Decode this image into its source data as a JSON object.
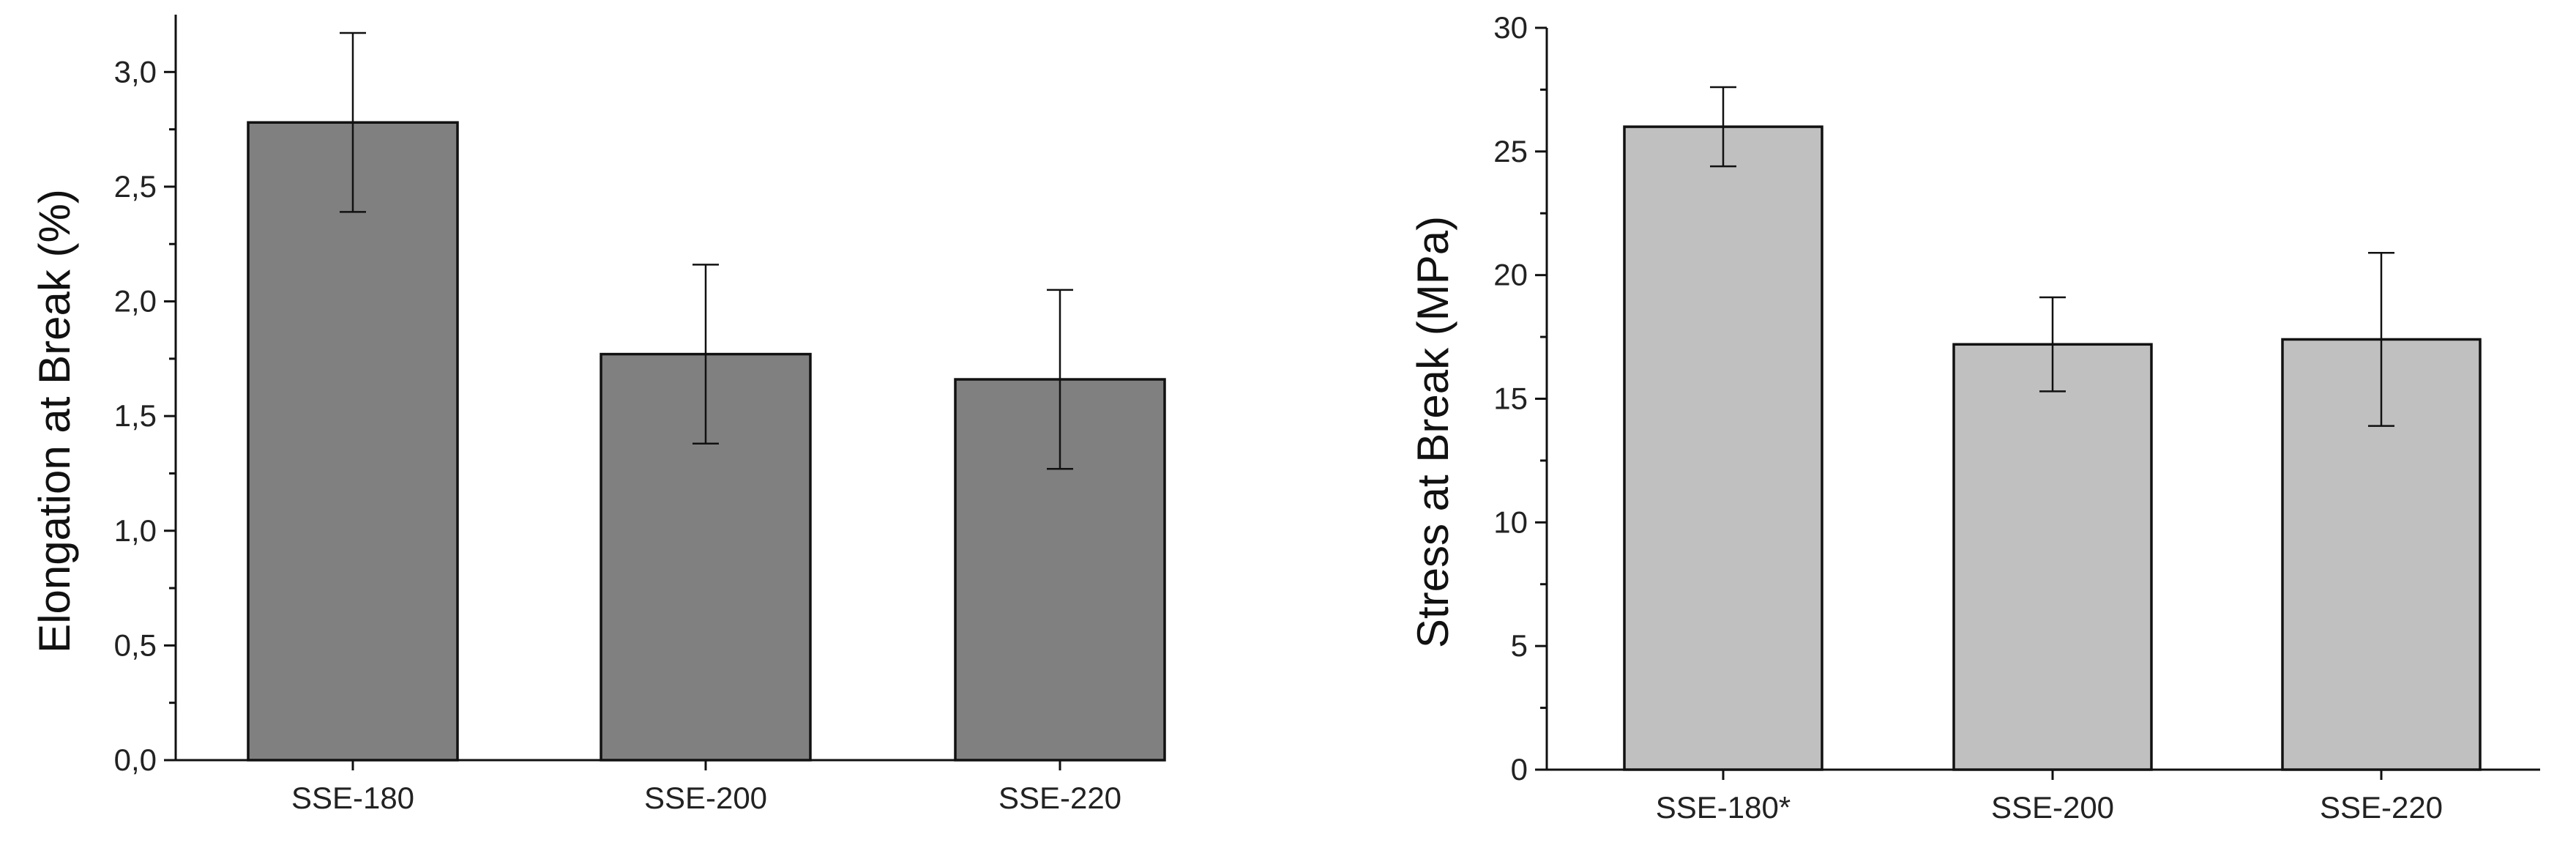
{
  "chart_data": [
    {
      "type": "bar",
      "title": "",
      "xlabel": "",
      "ylabel": "Elongation at Break (%)",
      "categories": [
        "SSE-180",
        "SSE-200",
        "SSE-220"
      ],
      "values": [
        2.78,
        1.77,
        1.66
      ],
      "errors": [
        0.39,
        0.39,
        0.39
      ],
      "ylim": [
        0,
        3.25
      ],
      "yticks": [
        0,
        0.5,
        1.0,
        1.5,
        2.0,
        2.5,
        3.0
      ],
      "ytick_labels": [
        "0,0",
        "0,5",
        "1,0",
        "1,5",
        "2,0",
        "2,5",
        "3,0"
      ],
      "bar_color": "#808080"
    },
    {
      "type": "bar",
      "title": "",
      "xlabel": "",
      "ylabel": "Stress at Break (MPa)",
      "categories": [
        "SSE-180*",
        "SSE-200",
        "SSE-220"
      ],
      "values": [
        26.0,
        17.2,
        17.4
      ],
      "errors": [
        1.6,
        1.9,
        3.5
      ],
      "ylim": [
        0,
        30
      ],
      "yticks": [
        0,
        5,
        10,
        15,
        20,
        25,
        30
      ],
      "ytick_labels": [
        "0",
        "5",
        "10",
        "15",
        "20",
        "25",
        "30"
      ],
      "bar_color": "#c0c0c0"
    }
  ]
}
